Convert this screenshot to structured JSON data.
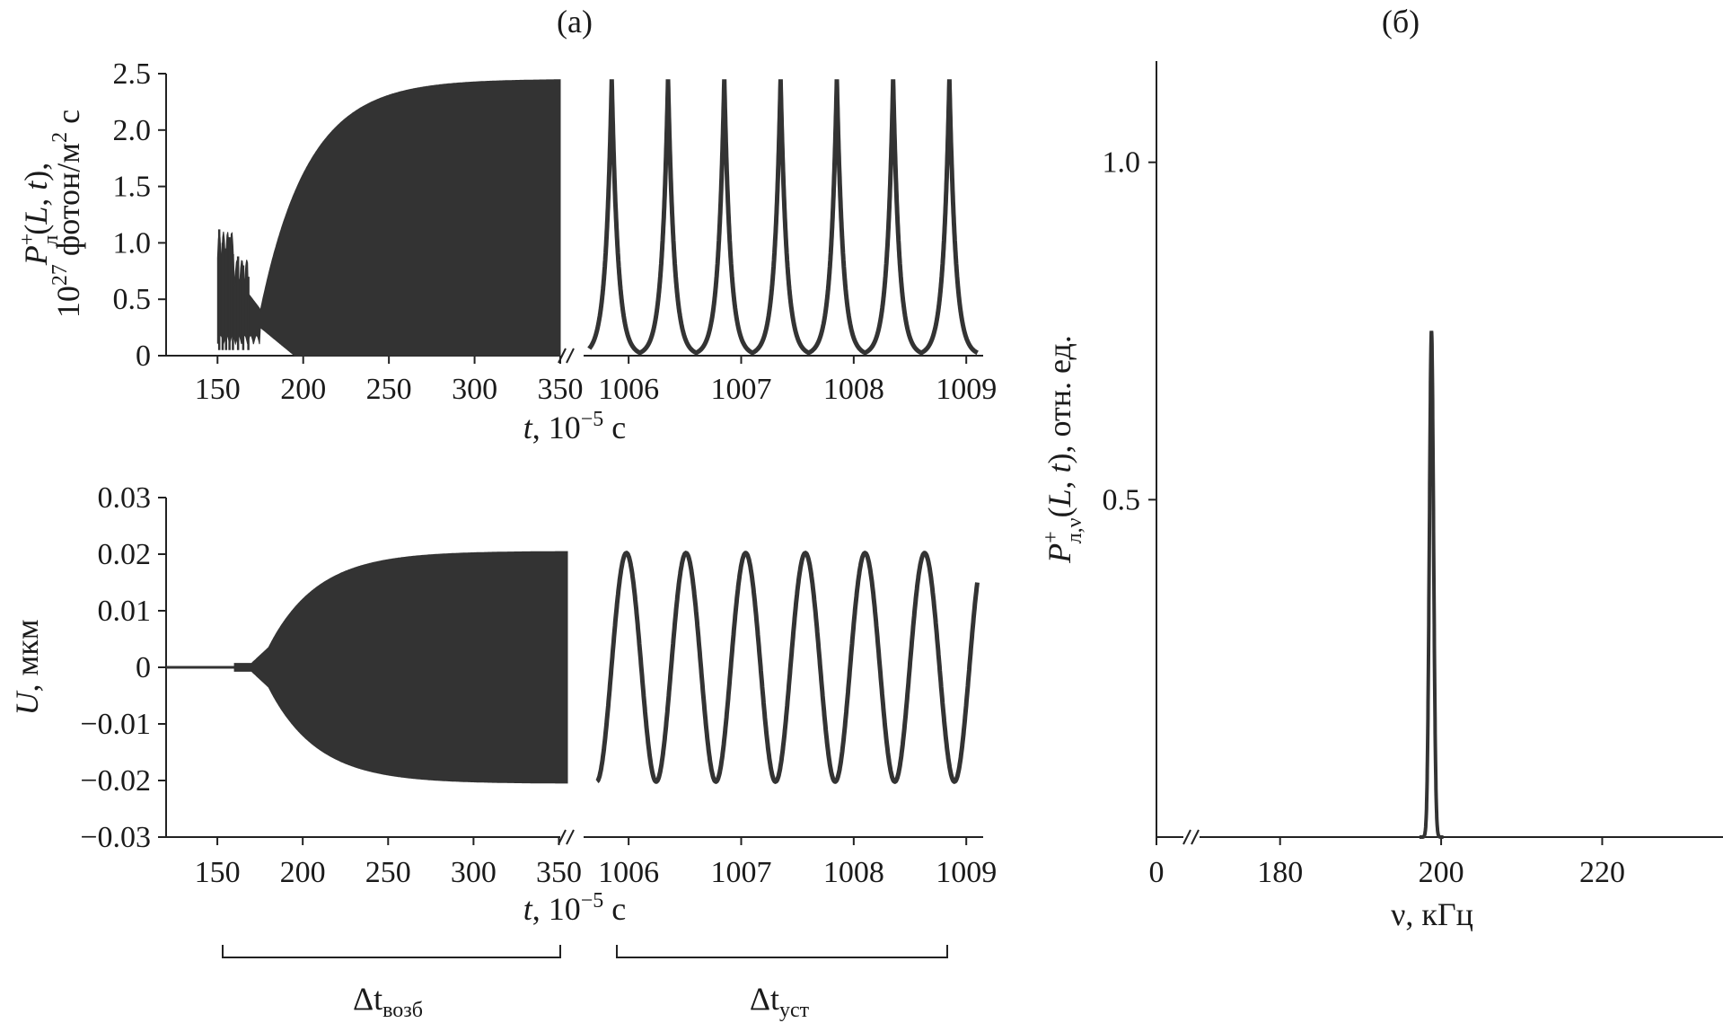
{
  "figure": {
    "panel_a_label": "(а)",
    "panel_b_label": "(б)",
    "dt_exc": {
      "main": "Δt",
      "sub": "возб"
    },
    "dt_ss": {
      "main": "Δt",
      "sub": "уст"
    }
  },
  "chart_data": [
    {
      "id": "power",
      "type": "line",
      "title": "",
      "ylabel_line1": {
        "P": "P",
        "sup": "+",
        "sub": "л",
        "rest": "(L, t),",
        "L": "L",
        "t": "t"
      },
      "ylabel_line2": {
        "pre": "10",
        "sup": "27",
        "mid": " фотон/м",
        "sup2": "2",
        "post": " с"
      },
      "xlabel": {
        "t": "t",
        "rest": ", 10",
        "sup": "−5",
        "post": " с"
      },
      "ylim": [
        0,
        2.5
      ],
      "yticks": [
        "0",
        "0.5",
        "1.0",
        "1.5",
        "2.0",
        "2.5"
      ],
      "ytick_values": [
        0,
        0.5,
        1.0,
        1.5,
        2.0,
        2.5
      ],
      "xticks_left": [
        "150",
        "200",
        "250",
        "300",
        "350"
      ],
      "xtick_left_values": [
        150,
        200,
        250,
        300,
        350
      ],
      "xlim_left": [
        120,
        350
      ],
      "xticks_right": [
        "1006",
        "1007",
        "1008",
        "1009"
      ],
      "xtick_right_values": [
        1006,
        1007,
        1008,
        1009
      ],
      "xlim_right": [
        1005.6,
        1009.15
      ],
      "series": [
        {
          "name": "P (excitation, dense envelope)",
          "envelope": {
            "onset": 150,
            "initial_burst_peak": 1.12,
            "initial_burst_end": 175,
            "min_at_175": 0.4,
            "saturation": 2.45,
            "end": 350
          }
        },
        {
          "name": "P (steady state, spikes)",
          "period": 0.5,
          "first_peak": 1005.85,
          "peak": 2.45,
          "x_end": 1009.1
        }
      ]
    },
    {
      "id": "displacement",
      "type": "line",
      "title": "",
      "ylabel": {
        "U": "U",
        "rest": ", мкм"
      },
      "xlabel": {
        "t": "t",
        "rest": ", 10",
        "sup": "−5",
        "post": " с"
      },
      "ylim": [
        -0.03,
        0.03
      ],
      "yticks": [
        "0.03",
        "0.02",
        "0.01",
        "0",
        "−0.01",
        "−0.02",
        "−0.03"
      ],
      "ytick_values": [
        0.03,
        0.02,
        0.01,
        0,
        -0.01,
        -0.02,
        -0.03
      ],
      "xticks_left": [
        "150",
        "200",
        "250",
        "300",
        "350"
      ],
      "xtick_left_values": [
        150,
        200,
        250,
        300,
        350
      ],
      "xlim_left": [
        120,
        355
      ],
      "xticks_right": [
        "1006",
        "1007",
        "1008",
        "1009"
      ],
      "xtick_right_values": [
        1006,
        1007,
        1008,
        1009
      ],
      "xlim_right": [
        1005.6,
        1009.15
      ],
      "series": [
        {
          "name": "U (excitation, growing envelope)",
          "envelope": {
            "onset": 160,
            "kink_at": 180,
            "kink_value": 0.0035,
            "saturation": 0.0205,
            "end": 355
          }
        },
        {
          "name": "U (steady state, sinusoid)",
          "amplitude": 0.0202,
          "period": 0.53,
          "first_max": 1005.98,
          "x_start": 1005.72,
          "x_end": 1009.1
        }
      ]
    },
    {
      "id": "spectrum",
      "type": "line",
      "title": "",
      "ylabel": {
        "P": "P",
        "sup": "+",
        "sub": "л,ν",
        "rest": "(L, t), отн. ед.",
        "L": "L",
        "t": "t"
      },
      "xlabel": "ν, кГц",
      "ylim": [
        0,
        1.15
      ],
      "yticks": [
        "0.5",
        "1.0"
      ],
      "ytick_values": [
        0.5,
        1.0
      ],
      "xticks": [
        "0",
        "180",
        "200",
        "220"
      ],
      "xtick_values": [
        0,
        180,
        200,
        220
      ],
      "xlim": [
        170,
        235
      ],
      "series": [
        {
          "name": "spectrum",
          "peak_x": 198.8,
          "peak_y": 0.75,
          "width": 0.8
        }
      ]
    }
  ]
}
